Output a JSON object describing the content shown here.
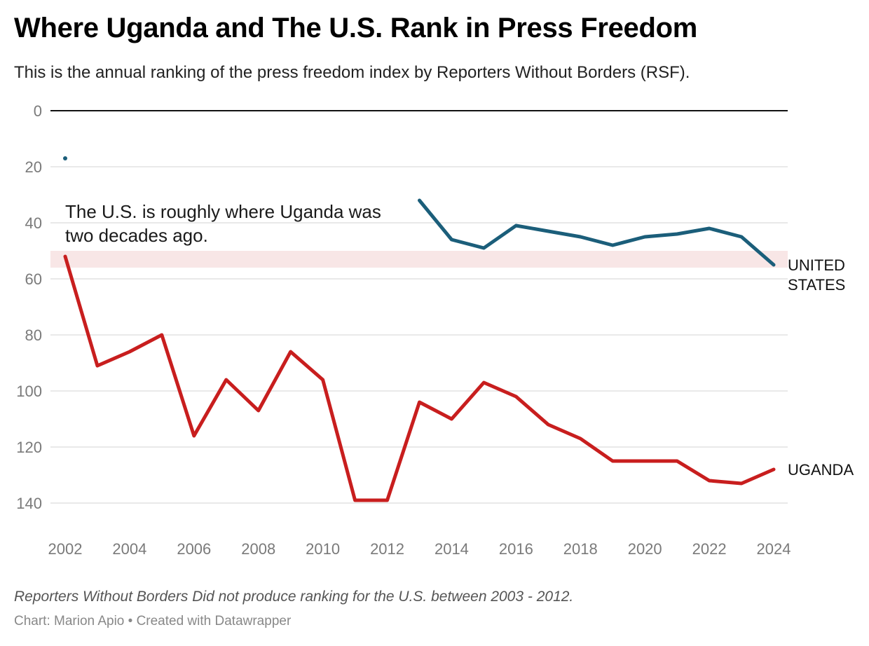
{
  "header": {
    "title": "Where Uganda and The U.S. Rank in Press Freedom",
    "subtitle": "This is the annual ranking of the press freedom index by Reporters Without Borders (RSF)."
  },
  "footer": {
    "note": "Reporters Without Borders Did not produce ranking for the U.S. between 2003 - 2012.",
    "credit": "Chart: Marion Apio • Created with Datawrapper"
  },
  "chart_data": {
    "type": "line",
    "title": "Where Uganda and The U.S. Rank in Press Freedom",
    "subtitle": "This is the annual ranking of the press freedom index by Reporters Without Borders (RSF).",
    "xlabel": "",
    "ylabel": "",
    "x_ticks": [
      2002,
      2004,
      2006,
      2008,
      2010,
      2012,
      2014,
      2016,
      2018,
      2020,
      2022,
      2024
    ],
    "y_ticks": [
      0,
      20,
      40,
      60,
      80,
      100,
      120,
      140
    ],
    "xlim": [
      2002,
      2024
    ],
    "ylim": [
      0,
      150
    ],
    "y_inverted": true,
    "grid": true,
    "highlight_band": {
      "y_from": 50,
      "y_to": 56,
      "color": "#f8e6e6"
    },
    "annotation": {
      "lines": [
        "The U.S. is roughly where Uganda was",
        "two decades ago."
      ],
      "x": 2002,
      "y": 40
    },
    "series": [
      {
        "name": "UNITED STATES",
        "label_lines": [
          "UNITED",
          "STATES"
        ],
        "color": "#1b5e7a",
        "points": [
          {
            "x": 2002,
            "y": 17
          },
          {
            "x": 2013,
            "y": 32
          },
          {
            "x": 2014,
            "y": 46
          },
          {
            "x": 2015,
            "y": 49
          },
          {
            "x": 2016,
            "y": 41
          },
          {
            "x": 2017,
            "y": 43
          },
          {
            "x": 2018,
            "y": 45
          },
          {
            "x": 2019,
            "y": 48
          },
          {
            "x": 2020,
            "y": 45
          },
          {
            "x": 2021,
            "y": 44
          },
          {
            "x": 2022,
            "y": 42
          },
          {
            "x": 2023,
            "y": 45
          },
          {
            "x": 2024,
            "y": 55
          }
        ]
      },
      {
        "name": "UGANDA",
        "label_lines": [
          "UGANDA"
        ],
        "color": "#c81e1e",
        "points": [
          {
            "x": 2002,
            "y": 52
          },
          {
            "x": 2003,
            "y": 91
          },
          {
            "x": 2004,
            "y": 86
          },
          {
            "x": 2005,
            "y": 80
          },
          {
            "x": 2006,
            "y": 116
          },
          {
            "x": 2007,
            "y": 96
          },
          {
            "x": 2008,
            "y": 107
          },
          {
            "x": 2009,
            "y": 86
          },
          {
            "x": 2010,
            "y": 96
          },
          {
            "x": 2011,
            "y": 139
          },
          {
            "x": 2012,
            "y": 139
          },
          {
            "x": 2013,
            "y": 104
          },
          {
            "x": 2014,
            "y": 110
          },
          {
            "x": 2015,
            "y": 97
          },
          {
            "x": 2016,
            "y": 102
          },
          {
            "x": 2017,
            "y": 112
          },
          {
            "x": 2018,
            "y": 117
          },
          {
            "x": 2019,
            "y": 125
          },
          {
            "x": 2020,
            "y": 125
          },
          {
            "x": 2021,
            "y": 125
          },
          {
            "x": 2022,
            "y": 132
          },
          {
            "x": 2023,
            "y": 133
          },
          {
            "x": 2024,
            "y": 128
          }
        ]
      }
    ]
  }
}
